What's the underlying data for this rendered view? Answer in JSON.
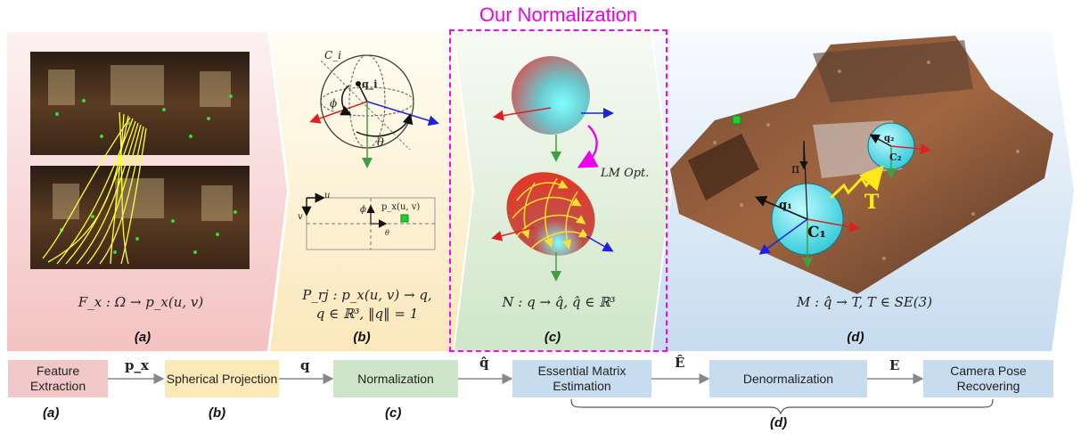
{
  "normalization_title": "Our Normalization",
  "panels": {
    "a": {
      "label": "(a)",
      "formula": "F_x : Ω → p_x(u, v)"
    },
    "b": {
      "label": "(b)",
      "formula_line1": "P_rj : p_x(u, v) → q,",
      "formula_line2": "q ∈ ℝ³, ‖q‖ = 1",
      "sphere_label": "C_i",
      "q_label": "q_i",
      "phi": "ϕ",
      "theta": "θ",
      "plane_u": "u",
      "plane_v": "v",
      "plane_px": "p_x(u, v)",
      "plane_phi": "ϕ",
      "plane_theta": "θ"
    },
    "c": {
      "label": "(c)",
      "formula": "N : q → q̂,  q̂ ∈ ℝ³",
      "lm_label": "LM Opt."
    },
    "d": {
      "label": "(d)",
      "formula": "M : q̂ → T,  T ∈ SE(3)",
      "q1": "q₁",
      "q2": "q₂",
      "c1": "C₁",
      "c2": "C₂",
      "T": "T",
      "pi": "π"
    }
  },
  "pipeline": {
    "boxes": [
      "Feature Extraction",
      "Spherical Projection",
      "Normalization",
      "Essential Matrix Estimation",
      "Denormalization",
      "Camera Pose Recovering"
    ],
    "arrow_labels": [
      "p_x",
      "q",
      "q̂",
      "Ê",
      "E"
    ],
    "step_labels": [
      "(a)",
      "(b)",
      "(c)",
      "(d)"
    ]
  },
  "colors": {
    "magenta": "#ff00ff",
    "feature_box": "#f2c7c7",
    "projection_box": "#fbe9b7",
    "normalization_box": "#cfe5c9",
    "blue_box": "#c7dcee"
  }
}
